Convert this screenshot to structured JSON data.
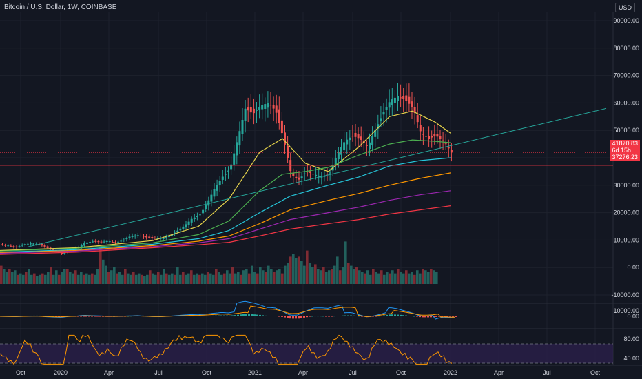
{
  "header": {
    "title": "Bitcoin / U.S. Dollar, 1W, COINBASE",
    "currency": "USD"
  },
  "price_tags": {
    "last_price": "41870.83",
    "countdown": "6d 15h",
    "line_level": "37276.23"
  },
  "colors": {
    "bg": "#131722",
    "grid": "#1e222d",
    "up": "#26a69a",
    "down": "#ef5350",
    "vol_up": "#22615d",
    "vol_down": "#7e2b33",
    "ma1": "#e6d34b",
    "ma2": "#4caf50",
    "ma3": "#26c6da",
    "ma4": "#ff9800",
    "ma5": "#9c27b0",
    "ma6": "#f23645",
    "trend": "#26a69a",
    "macd": "#2196f3",
    "signal": "#ff9800",
    "rsi": "#ff9800",
    "rsi_band": "#2a1f4a"
  },
  "chart_data": [
    {
      "type": "candlestick",
      "title": "Bitcoin / U.S. Dollar, 1W, COINBASE",
      "y_ticks": [
        90000,
        80000,
        70000,
        60000,
        50000,
        40000,
        30000,
        20000,
        10000,
        0,
        -10000
      ],
      "y_tick_labels": [
        "90000.00",
        "80000.00",
        "70000.00",
        "60000.00",
        "50000.00",
        "40000.00",
        "30000.00",
        "20000.00",
        "10000.00",
        "0.00",
        "-10000.00"
      ],
      "x_tick_labels": [
        "Oct",
        "2020",
        "Apr",
        "Jul",
        "Oct",
        "2021",
        "Apr",
        "Jul",
        "Oct",
        "2022",
        "Apr",
        "Jul",
        "Oct"
      ],
      "close_path": [
        [
          0,
          8500
        ],
        [
          10,
          8000
        ],
        [
          20,
          7300
        ],
        [
          30,
          8500
        ],
        [
          40,
          8800
        ],
        [
          50,
          8500
        ],
        [
          60,
          7200
        ],
        [
          70,
          6200
        ],
        [
          80,
          4900
        ],
        [
          90,
          6800
        ],
        [
          100,
          7200
        ],
        [
          110,
          9000
        ],
        [
          120,
          9500
        ],
        [
          130,
          9200
        ],
        [
          140,
          9700
        ],
        [
          150,
          9100
        ],
        [
          160,
          10000
        ],
        [
          170,
          11500
        ],
        [
          180,
          11800
        ],
        [
          190,
          11000
        ],
        [
          200,
          10700
        ],
        [
          210,
          10600
        ],
        [
          220,
          11400
        ],
        [
          230,
          13200
        ],
        [
          240,
          15200
        ],
        [
          250,
          17800
        ],
        [
          260,
          19000
        ],
        [
          270,
          23500
        ],
        [
          280,
          29000
        ],
        [
          290,
          33000
        ],
        [
          300,
          36000
        ],
        [
          310,
          47000
        ],
        [
          320,
          58000
        ],
        [
          330,
          56000
        ],
        [
          340,
          59000
        ],
        [
          350,
          60000
        ],
        [
          360,
          57000
        ],
        [
          370,
          47000
        ],
        [
          380,
          34000
        ],
        [
          390,
          32000
        ],
        [
          400,
          35000
        ],
        [
          410,
          34000
        ],
        [
          420,
          33000
        ],
        [
          430,
          34000
        ],
        [
          440,
          41000
        ],
        [
          450,
          46000
        ],
        [
          460,
          48000
        ],
        [
          470,
          47000
        ],
        [
          480,
          44000
        ],
        [
          490,
          50000
        ],
        [
          500,
          56000
        ],
        [
          510,
          61000
        ],
        [
          520,
          62500
        ],
        [
          530,
          61000
        ],
        [
          540,
          58000
        ],
        [
          550,
          49000
        ],
        [
          560,
          47000
        ],
        [
          570,
          48000
        ],
        [
          580,
          46000
        ],
        [
          590,
          41870
        ]
      ],
      "current_price": 41870.83,
      "horizontal_line": 37276.23,
      "moving_averages": [
        {
          "color": "#e6d34b",
          "points": [
            [
              0,
              6200
            ],
            [
              100,
              7200
            ],
            [
              200,
              9800
            ],
            [
              260,
              15000
            ],
            [
              300,
              25000
            ],
            [
              340,
              42000
            ],
            [
              370,
              47000
            ],
            [
              400,
              38000
            ],
            [
              430,
              35000
            ],
            [
              470,
              44000
            ],
            [
              510,
              55000
            ],
            [
              540,
              57000
            ],
            [
              570,
              53000
            ],
            [
              590,
              49000
            ]
          ]
        },
        {
          "color": "#4caf50",
          "points": [
            [
              0,
              6000
            ],
            [
              100,
              7000
            ],
            [
              200,
              9000
            ],
            [
              260,
              12000
            ],
            [
              300,
              17000
            ],
            [
              340,
              28000
            ],
            [
              370,
              34000
            ],
            [
              400,
              35000
            ],
            [
              430,
              36500
            ],
            [
              470,
              41000
            ],
            [
              510,
              45000
            ],
            [
              540,
              46500
            ],
            [
              570,
              46000
            ],
            [
              590,
              45500
            ]
          ]
        },
        {
          "color": "#26c6da",
          "points": [
            [
              0,
              5600
            ],
            [
              100,
              6500
            ],
            [
              200,
              8500
            ],
            [
              260,
              10500
            ],
            [
              300,
              13500
            ],
            [
              340,
              20000
            ],
            [
              380,
              26000
            ],
            [
              430,
              30000
            ],
            [
              470,
              33000
            ],
            [
              510,
              37000
            ],
            [
              550,
              39000
            ],
            [
              590,
              40000
            ]
          ]
        },
        {
          "color": "#ff9800",
          "points": [
            [
              0,
              5400
            ],
            [
              100,
              6200
            ],
            [
              200,
              8000
            ],
            [
              260,
              9600
            ],
            [
              300,
              11500
            ],
            [
              340,
              16000
            ],
            [
              380,
              21000
            ],
            [
              430,
              24500
            ],
            [
              470,
              27000
            ],
            [
              510,
              30000
            ],
            [
              550,
              32500
            ],
            [
              590,
              34500
            ]
          ]
        },
        {
          "color": "#9c27b0",
          "points": [
            [
              0,
              5200
            ],
            [
              100,
              6000
            ],
            [
              200,
              7600
            ],
            [
              260,
              9000
            ],
            [
              300,
              10500
            ],
            [
              340,
              14000
            ],
            [
              380,
              17500
            ],
            [
              430,
              20000
            ],
            [
              470,
              22000
            ],
            [
              510,
              24500
            ],
            [
              550,
              26500
            ],
            [
              590,
              28000
            ]
          ]
        },
        {
          "color": "#f23645",
          "points": [
            [
              0,
              4800
            ],
            [
              100,
              5600
            ],
            [
              200,
              7200
            ],
            [
              260,
              8300
            ],
            [
              300,
              9200
            ],
            [
              340,
              11500
            ],
            [
              380,
              14000
            ],
            [
              430,
              16000
            ],
            [
              470,
              17500
            ],
            [
              510,
              19500
            ],
            [
              550,
              21000
            ],
            [
              590,
              22500
            ]
          ]
        }
      ],
      "trendline": [
        [
          40,
          7500
        ],
        [
          840,
          58000
        ]
      ]
    },
    {
      "type": "bar",
      "name": "volume",
      "values": [
        0.6,
        0.5,
        0.4,
        0.5,
        0.4,
        0.45,
        0.3,
        0.35,
        0.3,
        0.4,
        0.5,
        0.3,
        0.35,
        0.25,
        0.3,
        0.35,
        0.3,
        0.4,
        0.55,
        0.3,
        0.45,
        0.3,
        0.4,
        0.5,
        0.5,
        0.4,
        0.35,
        0.45,
        0.3,
        0.4,
        0.3,
        0.35,
        0.3,
        0.35,
        0.3,
        0.5,
        1.2,
        0.8,
        0.6,
        0.4,
        0.45,
        0.55,
        0.35,
        0.4,
        0.3,
        0.5,
        0.35,
        0.3,
        0.4,
        0.3,
        0.35,
        0.3,
        0.25,
        0.3,
        0.45,
        0.35,
        0.3,
        0.4,
        0.3,
        0.5,
        0.35,
        0.3,
        0.35,
        0.3,
        0.55,
        0.3,
        0.4,
        0.3,
        0.35,
        0.45,
        0.3,
        0.35,
        0.3,
        0.35,
        0.3,
        0.4,
        0.35,
        0.3,
        0.5,
        0.4,
        0.3,
        0.35,
        0.45,
        0.35,
        0.55,
        0.35,
        0.4,
        0.3,
        0.45,
        0.5,
        0.35,
        0.6,
        0.4,
        0.35,
        0.55,
        0.45,
        0.4,
        0.6,
        0.5,
        0.4,
        0.45,
        0.5,
        0.35,
        0.6,
        0.7,
        0.9,
        1.0,
        0.85,
        0.9,
        0.75,
        0.6,
        1.1,
        0.7,
        0.55,
        0.65,
        0.5,
        0.45,
        0.55,
        0.4,
        0.45,
        0.5,
        0.6,
        0.9,
        0.45,
        0.55,
        1.4,
        0.7,
        0.6,
        0.5,
        0.55,
        0.45,
        0.4,
        0.35,
        0.45,
        0.3,
        0.5,
        0.4,
        0.35,
        0.45,
        0.3,
        0.4,
        0.35,
        0.45,
        0.35,
        0.5,
        0.4,
        0.35,
        0.45,
        0.35,
        0.4,
        0.3,
        0.45,
        0.35,
        0.5,
        0.45,
        0.4,
        0.5,
        0.45,
        0.4
      ]
    },
    {
      "type": "line",
      "name": "macd",
      "y_ticks": [
        10000,
        0
      ],
      "y_tick_labels": [
        "10000.00",
        "0.00"
      ]
    },
    {
      "type": "line",
      "name": "rsi",
      "y_ticks": [
        80,
        40
      ],
      "y_tick_labels": [
        "80.00",
        "40.00"
      ],
      "band": [
        30,
        70
      ]
    }
  ]
}
